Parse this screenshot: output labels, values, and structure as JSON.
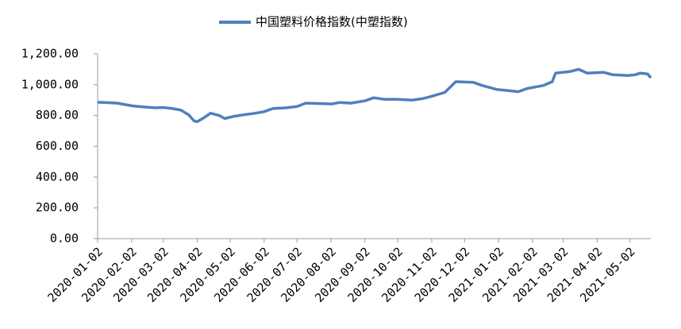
{
  "chart_data": {
    "type": "line",
    "x": [
      "2020-01-02",
      "2020-01-10",
      "2020-01-20",
      "2020-02-03",
      "2020-02-14",
      "2020-02-24",
      "2020-03-02",
      "2020-03-10",
      "2020-03-18",
      "2020-03-25",
      "2020-03-30",
      "2020-04-02",
      "2020-04-08",
      "2020-04-14",
      "2020-04-22",
      "2020-04-27",
      "2020-05-06",
      "2020-05-15",
      "2020-05-25",
      "2020-06-02",
      "2020-06-10",
      "2020-06-22",
      "2020-07-02",
      "2020-07-10",
      "2020-07-20",
      "2020-08-03",
      "2020-08-10",
      "2020-08-20",
      "2020-09-02",
      "2020-09-10",
      "2020-09-20",
      "2020-10-01",
      "2020-10-15",
      "2020-10-25",
      "2020-11-02",
      "2020-11-14",
      "2020-11-24",
      "2020-12-10",
      "2020-12-18",
      "2020-12-31",
      "2021-01-13",
      "2021-01-20",
      "2021-01-28",
      "2021-02-12",
      "2021-02-20",
      "2021-02-23",
      "2021-03-08",
      "2021-03-16",
      "2021-03-24",
      "2021-04-08",
      "2021-04-16",
      "2021-04-30",
      "2021-05-07",
      "2021-05-11",
      "2021-05-18",
      "2021-05-21"
    ],
    "series": [
      {
        "name": "中国塑料价格指数(中塑指数)",
        "color": "#4f7fbd",
        "values": [
          886,
          884,
          880,
          862,
          855,
          850,
          852,
          845,
          835,
          805,
          765,
          760,
          785,
          815,
          800,
          780,
          795,
          805,
          815,
          825,
          845,
          850,
          858,
          880,
          878,
          875,
          885,
          880,
          895,
          915,
          905,
          905,
          900,
          910,
          925,
          950,
          1020,
          1015,
          995,
          970,
          960,
          955,
          975,
          995,
          1020,
          1075,
          1085,
          1100,
          1075,
          1080,
          1065,
          1060,
          1065,
          1075,
          1070,
          1045
        ]
      }
    ],
    "xlim": [
      "2020-01-02",
      "2021-05-21"
    ],
    "xticks": [
      "2020-01-02",
      "2020-02-02",
      "2020-03-02",
      "2020-04-02",
      "2020-05-02",
      "2020-06-02",
      "2020-07-02",
      "2020-08-02",
      "2020-09-02",
      "2020-10-02",
      "2020-11-02",
      "2020-12-02",
      "2021-01-02",
      "2021-02-02",
      "2021-03-02",
      "2021-04-02",
      "2021-05-02"
    ],
    "ylim": [
      0,
      1200
    ],
    "yticks": [
      {
        "value": 0,
        "label": "0.00"
      },
      {
        "value": 200,
        "label": "200.00"
      },
      {
        "value": 400,
        "label": "400.00"
      },
      {
        "value": 600,
        "label": "600.00"
      },
      {
        "value": 800,
        "label": "800.00"
      },
      {
        "value": 1000,
        "label": "1,000.00"
      },
      {
        "value": 1200,
        "label": "1,200.00"
      }
    ],
    "legend": "top",
    "grid": false
  }
}
